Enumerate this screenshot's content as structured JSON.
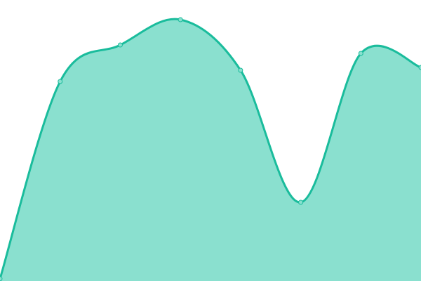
{
  "chart_data": {
    "type": "area",
    "x": [
      0,
      1,
      2,
      3,
      4,
      5,
      6,
      7
    ],
    "series": [
      {
        "values": [
          0.8,
          71,
          84,
          93,
          75,
          28,
          81,
          76
        ]
      }
    ],
    "xlim": [
      0,
      7
    ],
    "ylim": [
      0,
      100
    ],
    "grid": false,
    "axes_visible": false,
    "smooth": true,
    "colors": {
      "line": "#1abc9c",
      "fill": "#8ae0cf",
      "marker_fill": "#8ae0cf",
      "marker_stroke": "#1abc9c"
    }
  }
}
